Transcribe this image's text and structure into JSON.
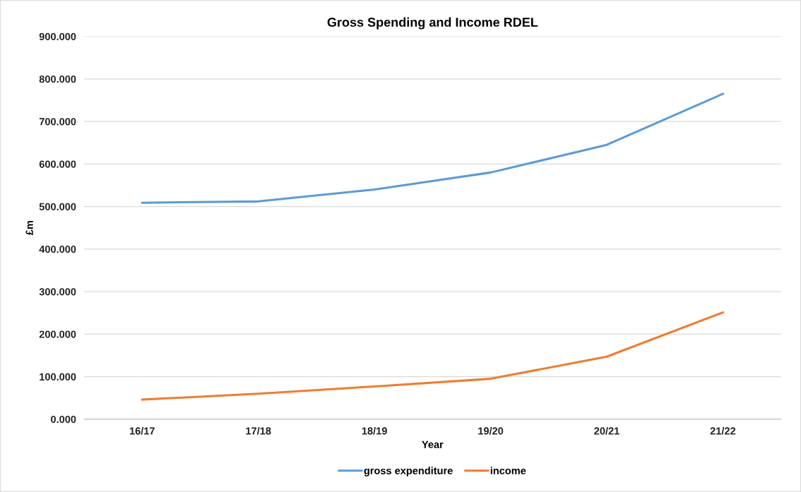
{
  "chart_data": {
    "type": "line",
    "title": "Gross Spending and Income RDEL",
    "xlabel": "Year",
    "ylabel": "£m",
    "categories": [
      "16/17",
      "17/18",
      "18/19",
      "19/20",
      "20/21",
      "21/22"
    ],
    "series": [
      {
        "name": "gross expenditure",
        "color": "#5b9bd5",
        "values": [
          509,
          512,
          540,
          580,
          645,
          765
        ]
      },
      {
        "name": "income",
        "color": "#ed7d31",
        "values": [
          46,
          60,
          77,
          95,
          147,
          251
        ]
      }
    ],
    "ylim": [
      0,
      900
    ],
    "yticks": [
      {
        "value": 0,
        "label": "0.000"
      },
      {
        "value": 100,
        "label": "100.000"
      },
      {
        "value": 200,
        "label": "200.000"
      },
      {
        "value": 300,
        "label": "300.000"
      },
      {
        "value": 400,
        "label": "400.000"
      },
      {
        "value": 500,
        "label": "500.000"
      },
      {
        "value": 600,
        "label": "600.000"
      },
      {
        "value": 700,
        "label": "700.000"
      },
      {
        "value": 800,
        "label": "800.000"
      },
      {
        "value": 900,
        "label": "900.000"
      }
    ],
    "grid": "y",
    "legend": "bottom",
    "marker": "none",
    "line_style": "solid"
  }
}
